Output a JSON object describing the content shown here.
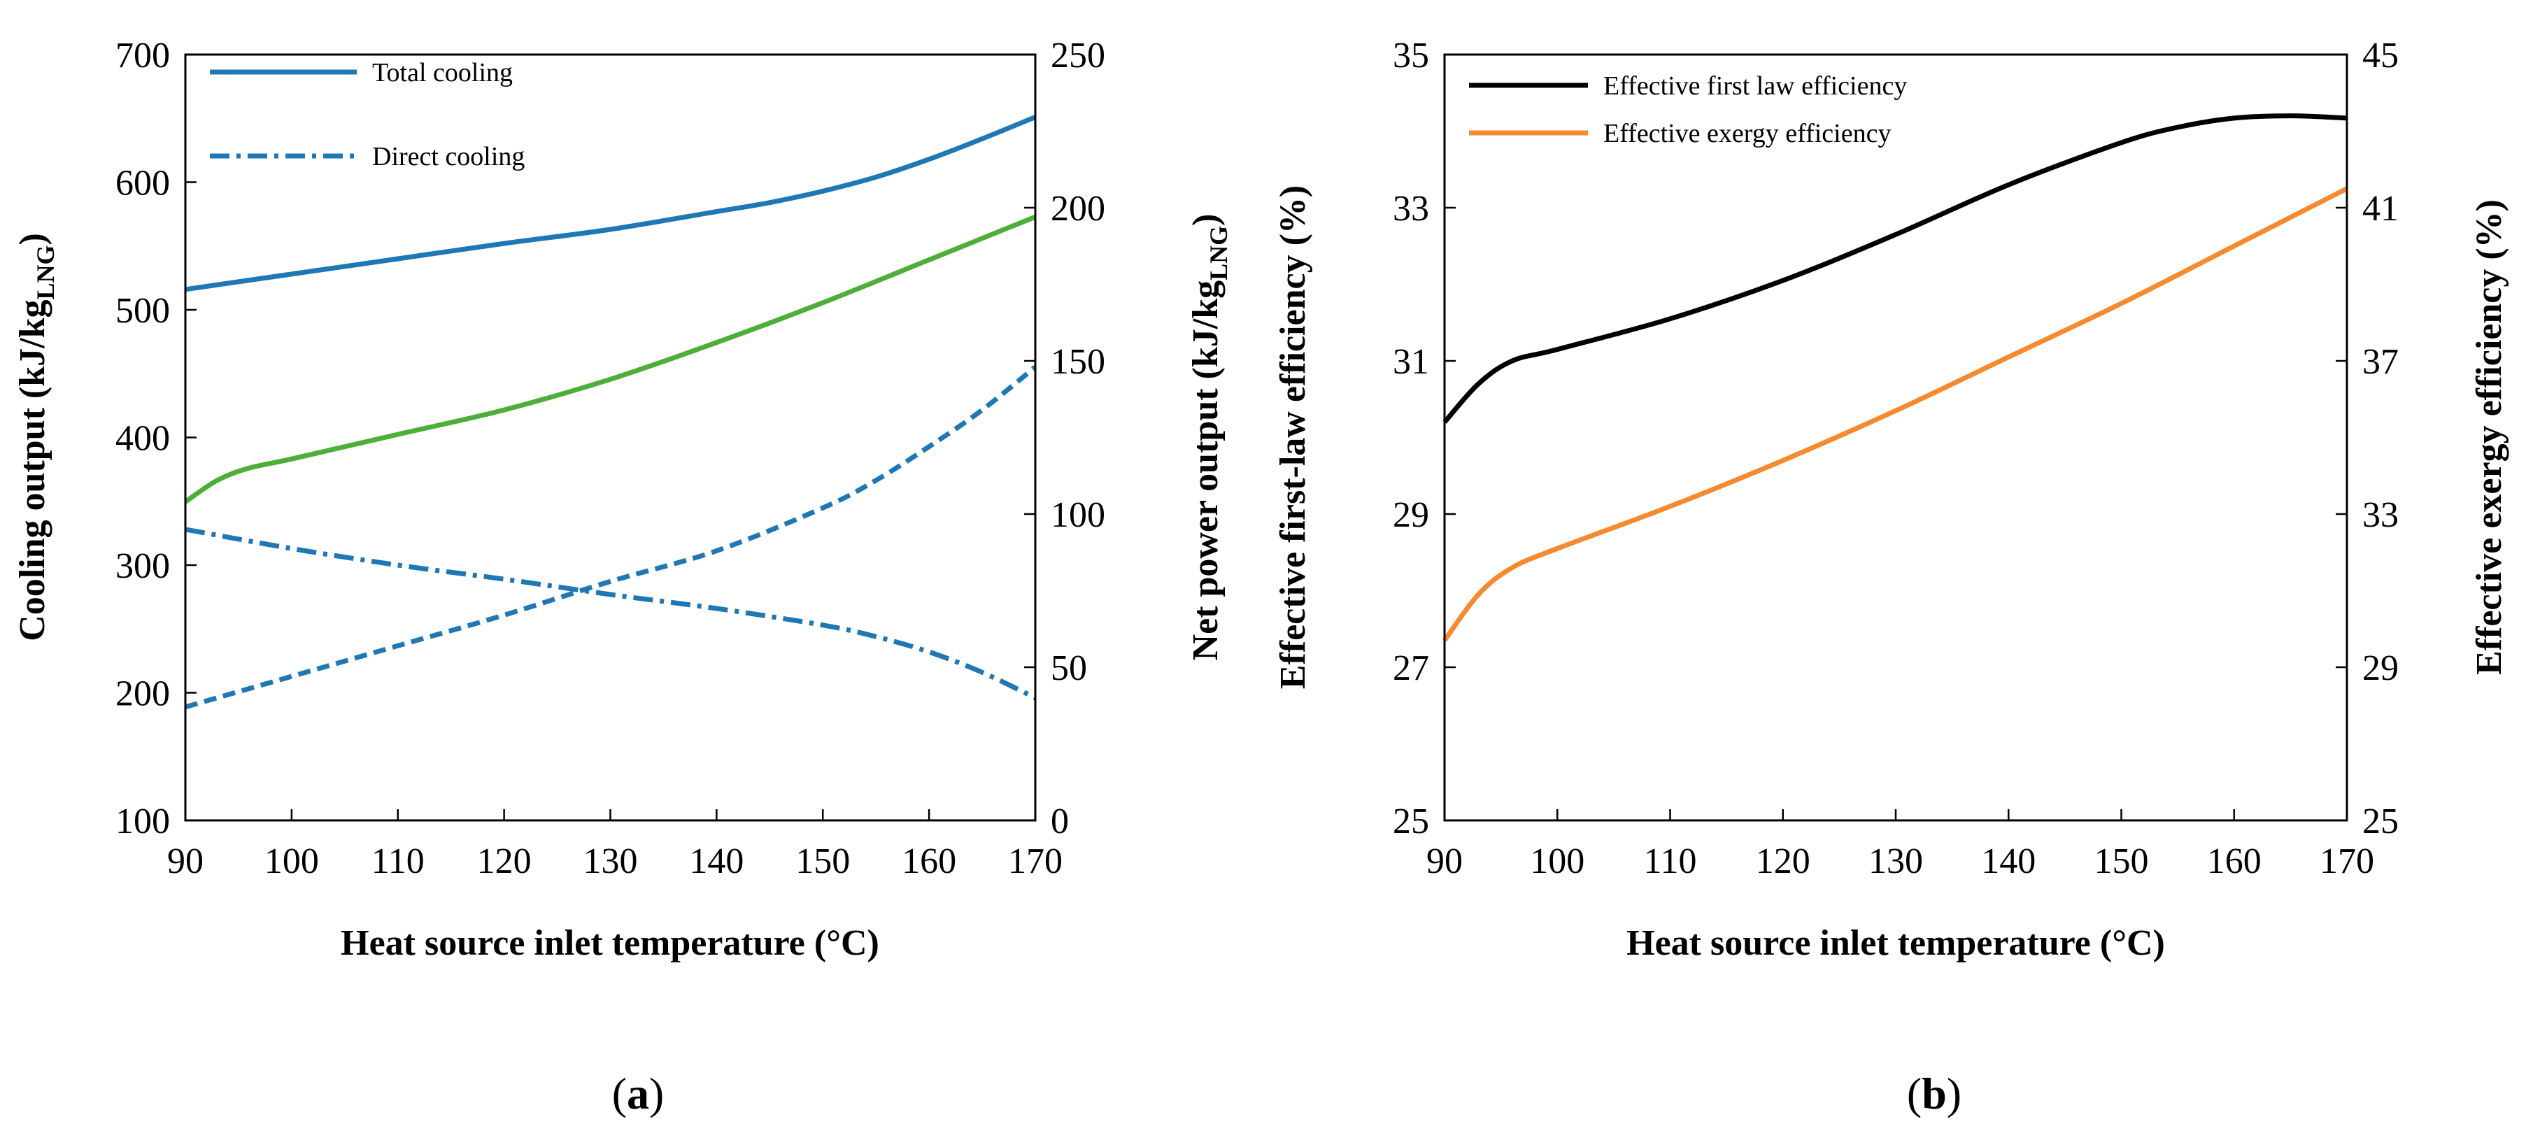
{
  "chart_data": [
    {
      "type": "line",
      "panel_label": "(a)",
      "panel_letter": "a",
      "xlabel": "Heat source inlet temperature (°C)",
      "ylabel_left": "Cooling output (kJ/kg",
      "ylabel_right": "Net power output (kJ/kg",
      "ylabel_subscript": "LNG",
      "xlim": [
        90,
        170
      ],
      "xticks": [
        90,
        100,
        110,
        120,
        130,
        140,
        150,
        160,
        170
      ],
      "ylim_left": [
        100,
        700
      ],
      "yticks_left": [
        100,
        200,
        300,
        400,
        500,
        600,
        700
      ],
      "ylim_right": [
        0,
        250
      ],
      "yticks_right": [
        0,
        50,
        100,
        150,
        200,
        250
      ],
      "legend_position": "top-left",
      "series": [
        {
          "name": "Total cooling",
          "axis": "left",
          "color": "#1f77b4",
          "style": "solid",
          "in_legend": true,
          "x": [
            90,
            100,
            110,
            120,
            130,
            140,
            145,
            150,
            155,
            160,
            165,
            170
          ],
          "y": [
            516,
            528,
            540,
            552,
            563,
            577,
            584,
            593,
            604,
            618,
            634,
            651
          ]
        },
        {
          "name": "Direct cooling",
          "axis": "left",
          "color": "#1f77b4",
          "style": "dashdot",
          "in_legend": true,
          "x": [
            90,
            100,
            110,
            120,
            130,
            140,
            150,
            155,
            160,
            165,
            170
          ],
          "y": [
            328,
            313,
            300,
            289,
            277,
            266,
            253,
            244,
            232,
            216,
            196
          ]
        },
        {
          "name": "Net power output",
          "axis": "right",
          "color": "#4daf3a",
          "style": "solid",
          "in_legend": false,
          "x": [
            90,
            93,
            96,
            100,
            110,
            120,
            130,
            140,
            150,
            160,
            170
          ],
          "y": [
            104,
            111,
            115,
            118,
            126,
            134,
            144,
            156,
            169,
            183,
            197
          ]
        },
        {
          "name": "Net power output (dashed)",
          "axis": "right",
          "color": "#1f77b4",
          "style": "dashed",
          "in_legend": false,
          "x": [
            90,
            100,
            110,
            120,
            130,
            140,
            150,
            155,
            160,
            165,
            170
          ],
          "y": [
            37,
            47,
            57,
            67,
            78,
            88,
            102,
            111,
            122,
            134,
            148
          ]
        }
      ]
    },
    {
      "type": "line",
      "panel_label": "(b)",
      "panel_letter": "b",
      "xlabel": "Heat source inlet temperature (°C)",
      "ylabel_left": "Effective first-law efficiency (%)",
      "ylabel_right": "Effective exergy efficiency (%)",
      "xlim": [
        90,
        170
      ],
      "xticks": [
        90,
        100,
        110,
        120,
        130,
        140,
        150,
        160,
        170
      ],
      "ylim_left": [
        25,
        35
      ],
      "yticks_left": [
        25,
        27,
        29,
        31,
        33,
        35
      ],
      "ylim_right": [
        25,
        45
      ],
      "yticks_right": [
        25,
        29,
        33,
        37,
        41,
        45
      ],
      "legend_position": "top-left",
      "series": [
        {
          "name": "Effective first law efficiency",
          "axis": "left",
          "color": "#000000",
          "style": "solid",
          "in_legend": true,
          "x": [
            90,
            93,
            96,
            100,
            110,
            120,
            130,
            140,
            150,
            155,
            160,
            165,
            170
          ],
          "y": [
            30.2,
            30.7,
            31.0,
            31.15,
            31.55,
            32.05,
            32.65,
            33.3,
            33.85,
            34.05,
            34.17,
            34.2,
            34.17
          ]
        },
        {
          "name": "Effective exergy efficiency",
          "axis": "right",
          "color": "#f58a2e",
          "style": "solid",
          "in_legend": true,
          "x": [
            90,
            93,
            96,
            100,
            110,
            120,
            130,
            140,
            150,
            160,
            170
          ],
          "y": [
            29.7,
            30.9,
            31.6,
            32.1,
            33.2,
            34.4,
            35.7,
            37.1,
            38.5,
            40.0,
            41.5
          ]
        }
      ]
    }
  ]
}
